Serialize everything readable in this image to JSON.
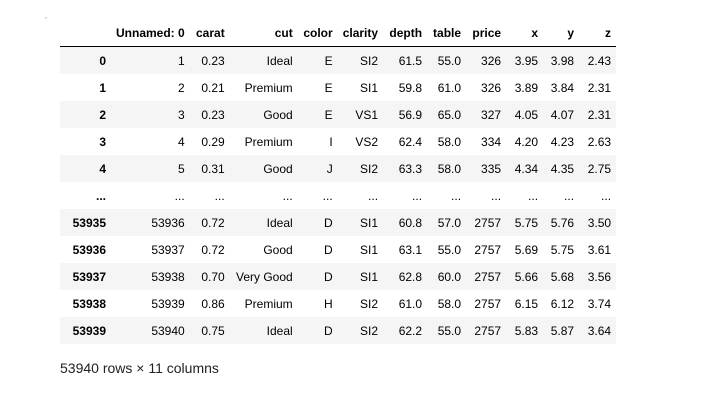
{
  "prompt_marker": "·",
  "table": {
    "columns": [
      "",
      "Unnamed: 0",
      "carat",
      "cut",
      "color",
      "clarity",
      "depth",
      "table",
      "price",
      "x",
      "y",
      "z"
    ],
    "rows": [
      {
        "index": "0",
        "cells": [
          "1",
          "0.23",
          "Ideal",
          "E",
          "SI2",
          "61.5",
          "55.0",
          "326",
          "3.95",
          "3.98",
          "2.43"
        ]
      },
      {
        "index": "1",
        "cells": [
          "2",
          "0.21",
          "Premium",
          "E",
          "SI1",
          "59.8",
          "61.0",
          "326",
          "3.89",
          "3.84",
          "2.31"
        ]
      },
      {
        "index": "2",
        "cells": [
          "3",
          "0.23",
          "Good",
          "E",
          "VS1",
          "56.9",
          "65.0",
          "327",
          "4.05",
          "4.07",
          "2.31"
        ]
      },
      {
        "index": "3",
        "cells": [
          "4",
          "0.29",
          "Premium",
          "I",
          "VS2",
          "62.4",
          "58.0",
          "334",
          "4.20",
          "4.23",
          "2.63"
        ]
      },
      {
        "index": "4",
        "cells": [
          "5",
          "0.31",
          "Good",
          "J",
          "SI2",
          "63.3",
          "58.0",
          "335",
          "4.34",
          "4.35",
          "2.75"
        ]
      },
      {
        "index": "...",
        "cells": [
          "...",
          "...",
          "...",
          "...",
          "...",
          "...",
          "...",
          "...",
          "...",
          "...",
          "..."
        ]
      },
      {
        "index": "53935",
        "cells": [
          "53936",
          "0.72",
          "Ideal",
          "D",
          "SI1",
          "60.8",
          "57.0",
          "2757",
          "5.75",
          "5.76",
          "3.50"
        ]
      },
      {
        "index": "53936",
        "cells": [
          "53937",
          "0.72",
          "Good",
          "D",
          "SI1",
          "63.1",
          "55.0",
          "2757",
          "5.69",
          "5.75",
          "3.61"
        ]
      },
      {
        "index": "53937",
        "cells": [
          "53938",
          "0.70",
          "Very Good",
          "D",
          "SI1",
          "62.8",
          "60.0",
          "2757",
          "5.66",
          "5.68",
          "3.56"
        ]
      },
      {
        "index": "53938",
        "cells": [
          "53939",
          "0.86",
          "Premium",
          "H",
          "SI2",
          "61.0",
          "58.0",
          "2757",
          "6.15",
          "6.12",
          "3.74"
        ]
      },
      {
        "index": "53939",
        "cells": [
          "53940",
          "0.75",
          "Ideal",
          "D",
          "SI2",
          "62.2",
          "55.0",
          "2757",
          "5.83",
          "5.87",
          "3.64"
        ]
      }
    ]
  },
  "shape_text": "53940 rows × 11 columns",
  "colors": {
    "stripe": "#f5f5f5",
    "prompt_marker": "#e69138",
    "text": "#000000"
  }
}
